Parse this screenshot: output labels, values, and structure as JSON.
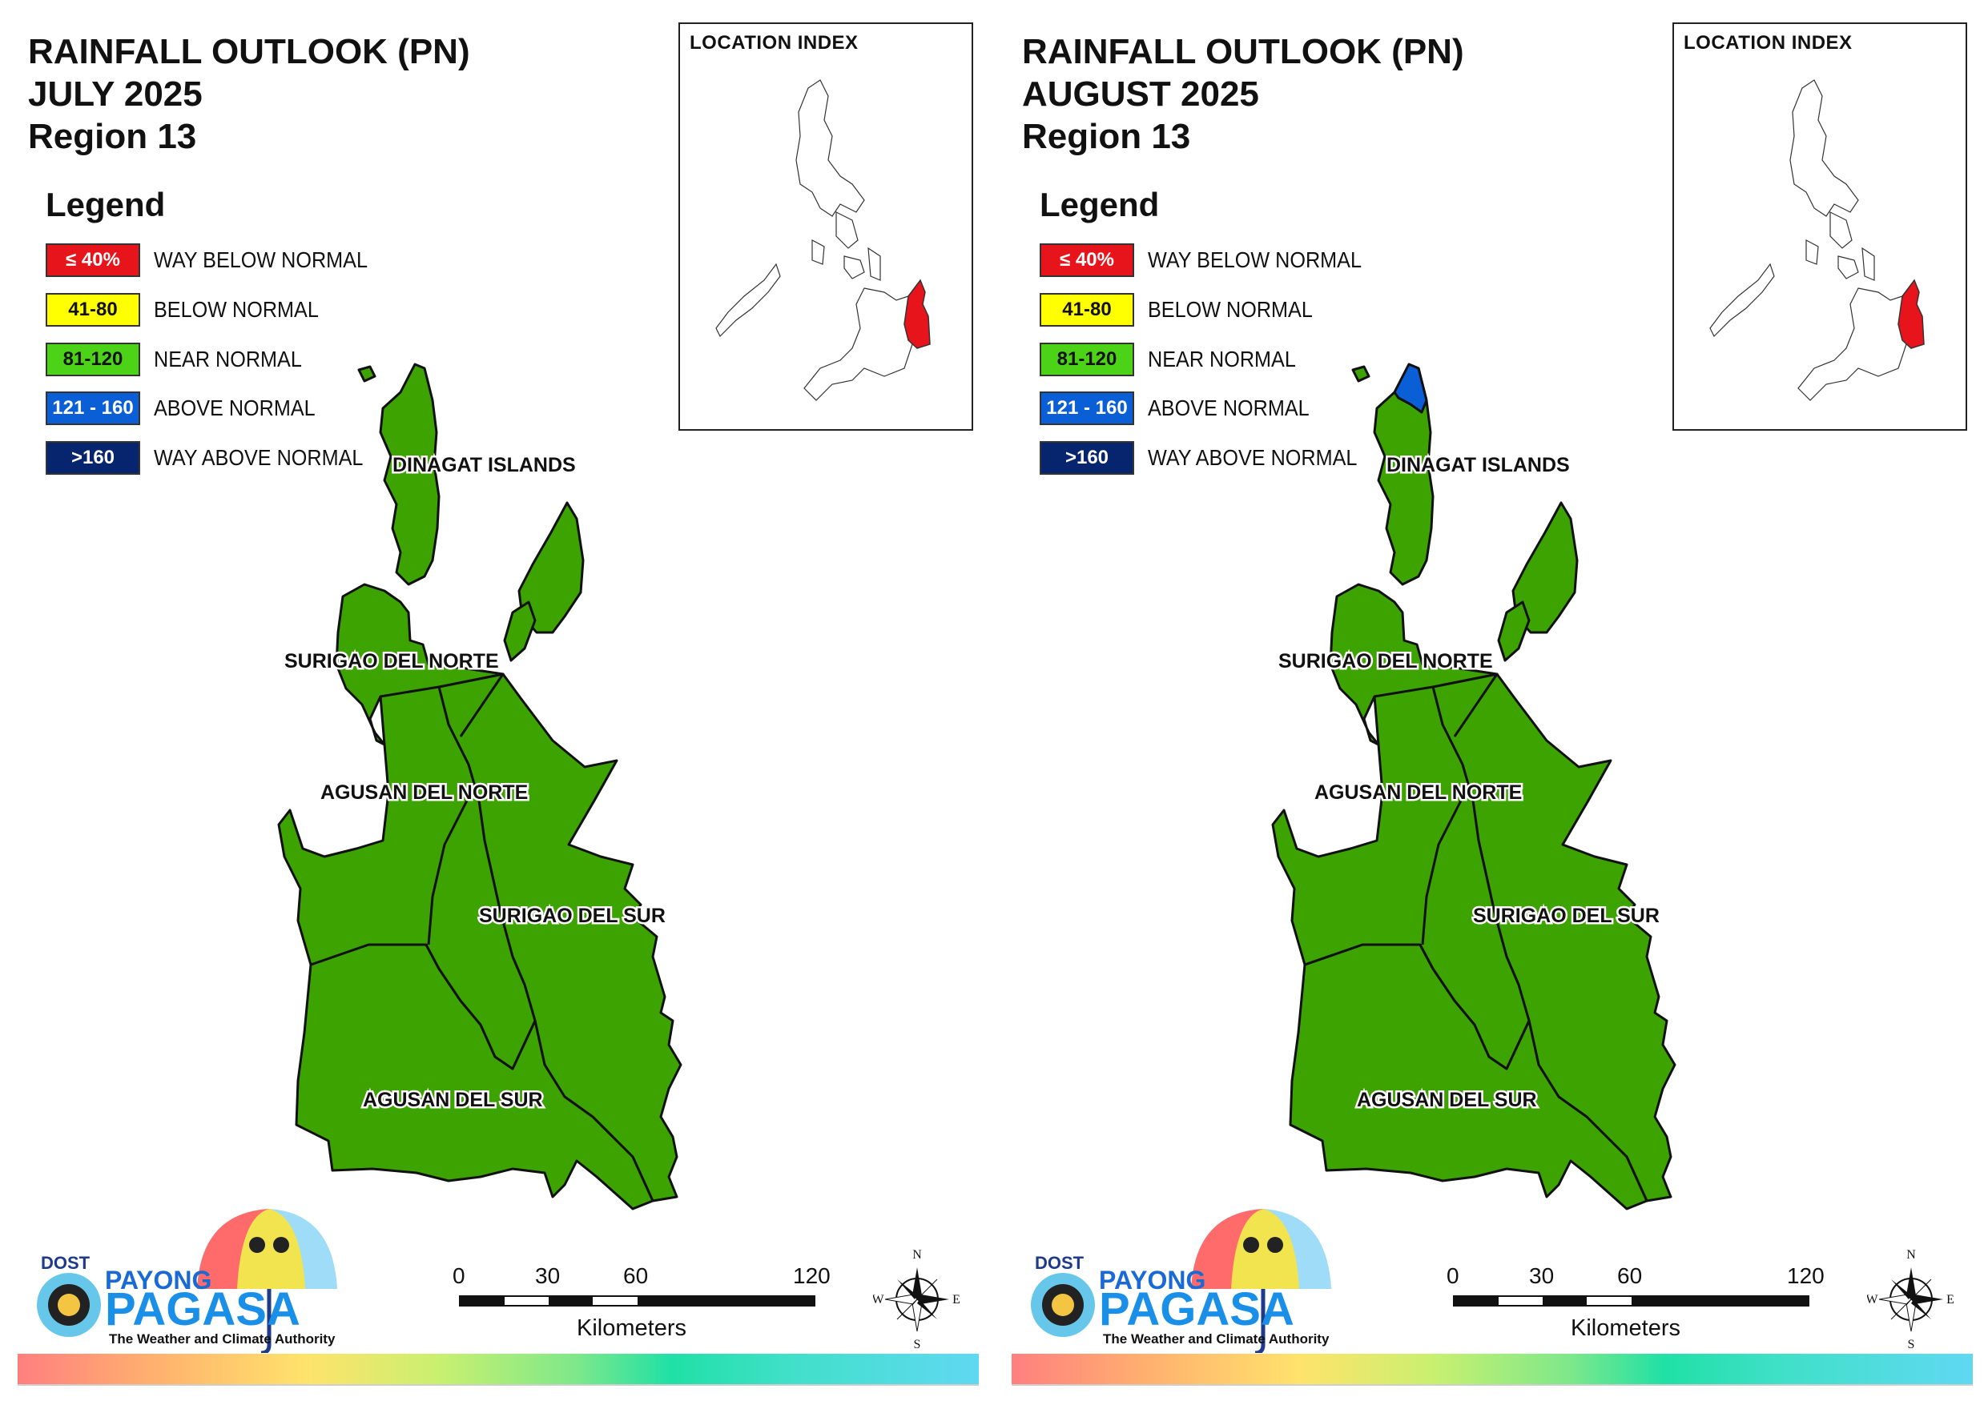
{
  "colors": {
    "way_below": "#e8141c",
    "below": "#ffff00",
    "near": "#3da300",
    "above": "#0a5fd6",
    "way_above": "#06256e"
  },
  "legend": {
    "title": "Legend",
    "items": [
      {
        "range": "≤ 40%",
        "label": "WAY BELOW NORMAL"
      },
      {
        "range": "41-80",
        "label": "BELOW NORMAL"
      },
      {
        "range": "81-120",
        "label": "NEAR NORMAL"
      },
      {
        "range": "121 - 160",
        "label": "ABOVE NORMAL"
      },
      {
        "range": ">160",
        "label": "WAY ABOVE NORMAL"
      }
    ]
  },
  "location_index": {
    "title": "LOCATION INDEX"
  },
  "provinces": {
    "dinagat": "DINAGAT ISLANDS",
    "surigao_norte": "SURIGAO DEL NORTE",
    "agusan_norte": "AGUSAN DEL NORTE",
    "surigao_sur": "SURIGAO DEL SUR",
    "agusan_sur": "AGUSAN DEL SUR"
  },
  "maps": [
    {
      "title_line1": "RAINFALL OUTLOOK (PN)",
      "title_line2": "JULY 2025",
      "title_line3": "Region 13",
      "province_categories": {
        "dinagat": "NEAR NORMAL",
        "surigao_norte": "NEAR NORMAL",
        "agusan_norte": "NEAR NORMAL",
        "surigao_sur": "NEAR NORMAL",
        "agusan_sur": "NEAR NORMAL"
      }
    },
    {
      "title_line1": "RAINFALL OUTLOOK (PN)",
      "title_line2": "AUGUST 2025",
      "title_line3": "Region 13",
      "province_categories": {
        "dinagat": "NEAR NORMAL",
        "dinagat_north_tip": "ABOVE NORMAL",
        "surigao_norte": "NEAR NORMAL",
        "agusan_norte": "NEAR NORMAL",
        "surigao_sur": "NEAR NORMAL",
        "agusan_sur": "NEAR NORMAL"
      }
    }
  ],
  "scale": {
    "ticks": [
      "0",
      "30",
      "60",
      "120"
    ],
    "unit": "Kilometers"
  },
  "compass": {
    "n": "N",
    "s": "S",
    "e": "E",
    "w": "W"
  },
  "logo": {
    "dost": "DOST",
    "payong": "PAYONG",
    "pagasa": "PAGASA",
    "tagline": "The Weather and Climate Authority"
  }
}
